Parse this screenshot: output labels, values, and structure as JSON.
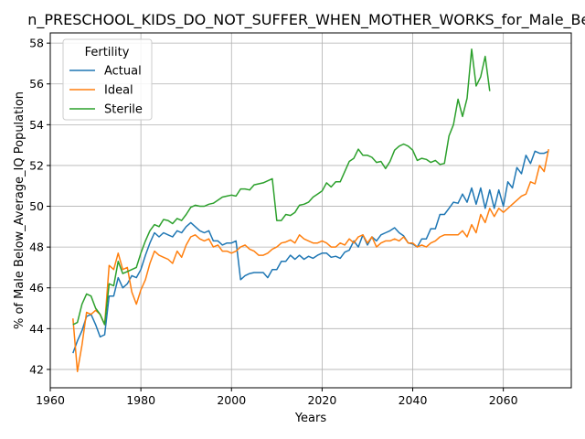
{
  "chart_data": {
    "type": "line",
    "title": "n_PRESCHOOL_KIDS_DO_NOT_SUFFER_WHEN_MOTHER_WORKS_for_Male_Bel",
    "xlabel": "Years",
    "ylabel": "% of Male Below_Average_IQ Population",
    "xlim": [
      1960,
      2075
    ],
    "ylim": [
      41.1,
      58.5
    ],
    "xticks": [
      1960,
      1980,
      2000,
      2020,
      2040,
      2060
    ],
    "yticks": [
      42,
      44,
      46,
      48,
      50,
      52,
      54,
      56,
      58
    ],
    "grid": true,
    "legend": {
      "title": "Fertility",
      "placement": "top-left"
    },
    "series": [
      {
        "name": "Actual",
        "color": "#1f77b4",
        "x": [
          1965,
          1966,
          1967,
          1968,
          1969,
          1970,
          1971,
          1972,
          1973,
          1974,
          1975,
          1976,
          1977,
          1978,
          1979,
          1980,
          1981,
          1982,
          1983,
          1984,
          1985,
          1986,
          1987,
          1988,
          1989,
          1990,
          1991,
          1992,
          1993,
          1994,
          1995,
          1996,
          1997,
          1998,
          1999,
          2000,
          2001,
          2002,
          2003,
          2004,
          2005,
          2006,
          2007,
          2008,
          2009,
          2010,
          2011,
          2012,
          2013,
          2014,
          2015,
          2016,
          2017,
          2018,
          2019,
          2020,
          2021,
          2022,
          2023,
          2024,
          2025,
          2026,
          2027,
          2028,
          2029,
          2030,
          2031,
          2032,
          2033,
          2034,
          2035,
          2036,
          2037,
          2038,
          2039,
          2040,
          2041,
          2042,
          2043,
          2044,
          2045,
          2046,
          2047,
          2048,
          2049,
          2050,
          2051,
          2052,
          2053,
          2054,
          2055,
          2056,
          2057,
          2058,
          2059,
          2060,
          2061,
          2062,
          2063,
          2064,
          2065,
          2066,
          2067,
          2068,
          2069,
          2070
        ],
        "values": [
          42.8,
          43.4,
          43.9,
          44.6,
          44.7,
          44.2,
          43.6,
          43.7,
          45.6,
          45.6,
          46.5,
          46.0,
          46.2,
          46.6,
          46.5,
          46.9,
          47.6,
          48.2,
          48.7,
          48.5,
          48.7,
          48.6,
          48.5,
          48.8,
          48.7,
          49.0,
          49.2,
          49.0,
          48.8,
          48.7,
          48.8,
          48.3,
          48.3,
          48.1,
          48.2,
          48.2,
          48.3,
          46.4,
          46.6,
          46.7,
          46.75,
          46.75,
          46.75,
          46.5,
          46.9,
          46.9,
          47.3,
          47.3,
          47.6,
          47.4,
          47.6,
          47.4,
          47.55,
          47.45,
          47.6,
          47.7,
          47.7,
          47.5,
          47.55,
          47.45,
          47.75,
          47.85,
          48.3,
          48.0,
          48.6,
          48.1,
          48.5,
          48.3,
          48.6,
          48.7,
          48.8,
          48.95,
          48.7,
          48.55,
          48.2,
          48.15,
          48.0,
          48.4,
          48.4,
          48.9,
          48.9,
          49.6,
          49.6,
          49.9,
          50.2,
          50.15,
          50.6,
          50.2,
          50.9,
          50.1,
          50.9,
          49.9,
          50.8,
          49.9,
          50.8,
          50.0,
          51.2,
          50.9,
          51.9,
          51.6,
          52.5,
          52.1,
          52.7,
          52.6,
          52.6,
          52.7
        ]
      },
      {
        "name": "Ideal",
        "color": "#ff7f0e",
        "x": [
          1965,
          1966,
          1967,
          1968,
          1969,
          1970,
          1971,
          1972,
          1973,
          1974,
          1975,
          1976,
          1977,
          1978,
          1979,
          1980,
          1981,
          1982,
          1983,
          1984,
          1985,
          1986,
          1987,
          1988,
          1989,
          1990,
          1991,
          1992,
          1993,
          1994,
          1995,
          1996,
          1997,
          1998,
          1999,
          2000,
          2001,
          2002,
          2003,
          2004,
          2005,
          2006,
          2007,
          2008,
          2009,
          2010,
          2011,
          2012,
          2013,
          2014,
          2015,
          2016,
          2017,
          2018,
          2019,
          2020,
          2021,
          2022,
          2023,
          2024,
          2025,
          2026,
          2027,
          2028,
          2029,
          2030,
          2031,
          2032,
          2033,
          2034,
          2035,
          2036,
          2037,
          2038,
          2039,
          2040,
          2041,
          2042,
          2043,
          2044,
          2045,
          2046,
          2047,
          2048,
          2049,
          2050,
          2051,
          2052,
          2053,
          2054,
          2055,
          2056,
          2057,
          2058,
          2059,
          2060,
          2061,
          2062,
          2063,
          2064,
          2065,
          2066,
          2067,
          2068,
          2069,
          2070
        ],
        "values": [
          44.5,
          41.9,
          43.2,
          44.8,
          44.7,
          44.9,
          44.7,
          44.2,
          47.1,
          46.9,
          47.7,
          46.9,
          47.0,
          45.8,
          45.2,
          45.9,
          46.4,
          47.2,
          47.8,
          47.6,
          47.5,
          47.4,
          47.2,
          47.8,
          47.5,
          48.1,
          48.5,
          48.6,
          48.4,
          48.3,
          48.4,
          48.0,
          48.1,
          47.8,
          47.8,
          47.7,
          47.8,
          48.0,
          48.1,
          47.9,
          47.8,
          47.6,
          47.6,
          47.7,
          47.9,
          48.0,
          48.2,
          48.25,
          48.35,
          48.2,
          48.6,
          48.4,
          48.3,
          48.2,
          48.2,
          48.3,
          48.2,
          48.0,
          48.0,
          48.2,
          48.1,
          48.4,
          48.2,
          48.5,
          48.6,
          48.2,
          48.5,
          48.0,
          48.2,
          48.3,
          48.3,
          48.4,
          48.3,
          48.5,
          48.2,
          48.2,
          48.0,
          48.1,
          48.0,
          48.2,
          48.3,
          48.5,
          48.6,
          48.6,
          48.6,
          48.6,
          48.8,
          48.5,
          49.1,
          48.7,
          49.6,
          49.2,
          49.9,
          49.5,
          49.9,
          49.7,
          49.9,
          50.1,
          50.3,
          50.5,
          50.6,
          51.2,
          51.1,
          52.0,
          51.7,
          52.8
        ]
      },
      {
        "name": "Sterile",
        "color": "#2ca02c",
        "x": [
          1965,
          1966,
          1967,
          1968,
          1969,
          1970,
          1971,
          1972,
          1973,
          1974,
          1975,
          1976,
          1977,
          1978,
          1979,
          1980,
          1981,
          1982,
          1983,
          1984,
          1985,
          1986,
          1987,
          1988,
          1989,
          1990,
          1991,
          1992,
          1993,
          1994,
          1995,
          1996,
          1997,
          1998,
          1999,
          2000,
          2001,
          2002,
          2003,
          2004,
          2005,
          2006,
          2007,
          2008,
          2009,
          2010,
          2011,
          2012,
          2013,
          2014,
          2015,
          2016,
          2017,
          2018,
          2019,
          2020,
          2021,
          2022,
          2023,
          2024,
          2025,
          2026,
          2027,
          2028,
          2029,
          2030,
          2031,
          2032,
          2033,
          2034,
          2035,
          2036,
          2037,
          2038,
          2039,
          2040,
          2041,
          2042,
          2043,
          2044,
          2045,
          2046,
          2047,
          2048,
          2049,
          2050,
          2051,
          2052,
          2053,
          2054,
          2055,
          2056,
          2057
        ],
        "values": [
          44.2,
          44.3,
          45.2,
          45.7,
          45.6,
          45.0,
          44.7,
          44.2,
          46.2,
          46.1,
          47.3,
          46.7,
          46.8,
          46.9,
          47.0,
          47.7,
          48.3,
          48.8,
          49.1,
          49.0,
          49.35,
          49.3,
          49.15,
          49.4,
          49.3,
          49.6,
          49.95,
          50.05,
          50.0,
          50.0,
          50.1,
          50.15,
          50.3,
          50.45,
          50.5,
          50.55,
          50.5,
          50.85,
          50.85,
          50.8,
          51.05,
          51.1,
          51.15,
          51.25,
          51.35,
          49.3,
          49.3,
          49.6,
          49.55,
          49.7,
          50.05,
          50.1,
          50.2,
          50.45,
          50.6,
          50.75,
          51.15,
          50.95,
          51.2,
          51.2,
          51.7,
          52.2,
          52.35,
          52.8,
          52.5,
          52.5,
          52.4,
          52.15,
          52.2,
          51.85,
          52.2,
          52.75,
          52.95,
          53.05,
          52.95,
          52.75,
          52.25,
          52.35,
          52.3,
          52.15,
          52.25,
          52.05,
          52.1,
          53.45,
          54.0,
          55.25,
          54.4,
          55.3,
          57.7,
          55.9,
          56.35,
          57.35,
          55.65
        ]
      }
    ]
  }
}
